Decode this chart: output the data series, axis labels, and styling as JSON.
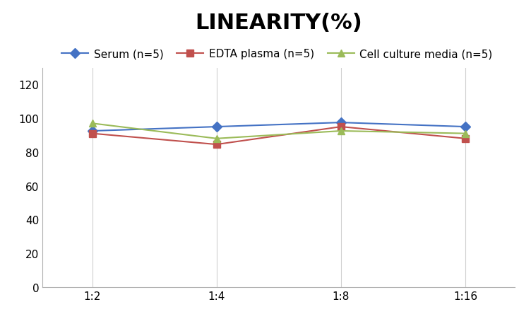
{
  "title": "LINEARITY(%)",
  "x_labels": [
    "1:2",
    "1:4",
    "1:8",
    "1:16"
  ],
  "series": [
    {
      "label": "Serum (n=5)",
      "values": [
        92.5,
        95.0,
        97.5,
        95.0
      ],
      "color": "#4472C4",
      "marker": "D"
    },
    {
      "label": "EDTA plasma (n=5)",
      "values": [
        91.0,
        84.5,
        95.0,
        88.0
      ],
      "color": "#C0504D",
      "marker": "s"
    },
    {
      "label": "Cell culture media (n=5)",
      "values": [
        97.0,
        88.0,
        92.5,
        91.0
      ],
      "color": "#9BBB59",
      "marker": "^"
    }
  ],
  "ylim": [
    0,
    130
  ],
  "yticks": [
    0,
    20,
    40,
    60,
    80,
    100,
    120
  ],
  "title_fontsize": 22,
  "legend_fontsize": 11,
  "tick_fontsize": 11,
  "background_color": "#ffffff",
  "grid_color": "#d0d0d0"
}
